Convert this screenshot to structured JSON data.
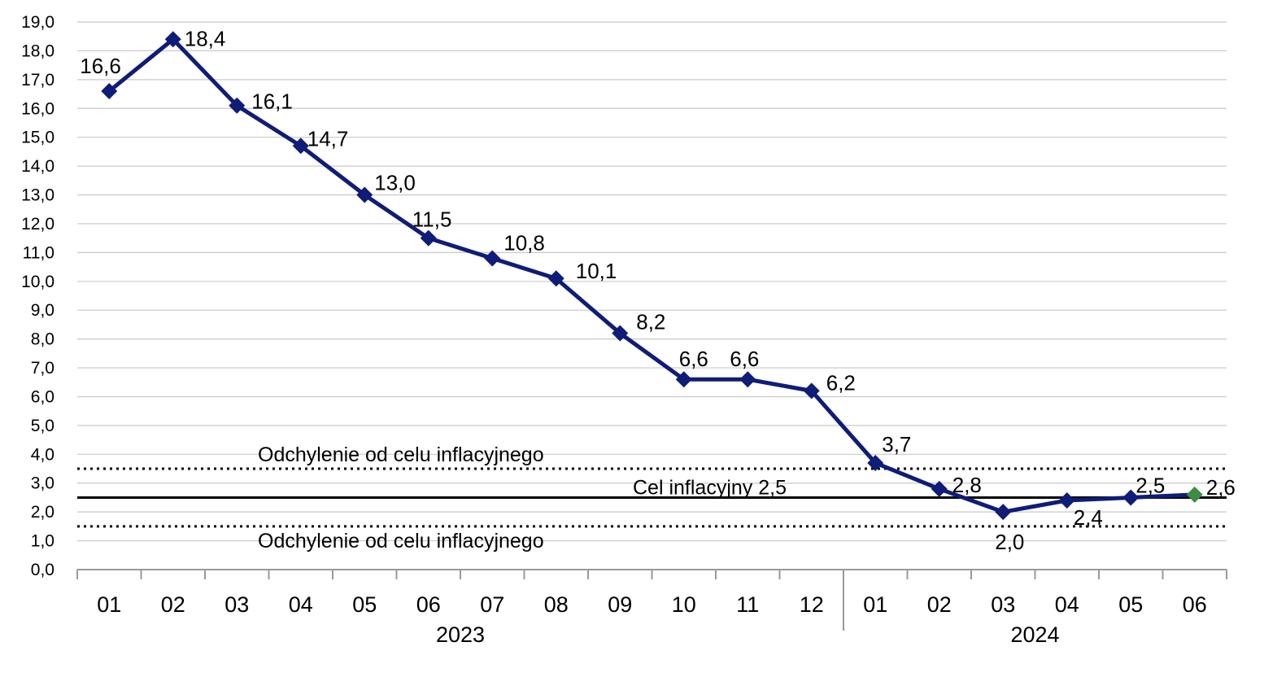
{
  "chart_data": {
    "type": "line",
    "categories": [
      "01",
      "02",
      "03",
      "04",
      "05",
      "06",
      "07",
      "08",
      "09",
      "10",
      "11",
      "12",
      "01",
      "02",
      "03",
      "04",
      "05",
      "06"
    ],
    "year_groups": [
      {
        "label": "2023",
        "count": 12
      },
      {
        "label": "2024",
        "count": 6
      }
    ],
    "series": [
      {
        "values": [
          16.6,
          18.4,
          16.1,
          14.7,
          13.0,
          11.5,
          10.8,
          10.1,
          8.2,
          6.6,
          6.6,
          6.2,
          3.7,
          2.8,
          2.0,
          2.4,
          2.5,
          2.6
        ],
        "labels": [
          "16,6",
          "18,4",
          "16,1",
          "14,7",
          "13,0",
          "11,5",
          "10,8",
          "10,1",
          "8,2",
          "6,6",
          "6,6",
          "6,2",
          "3,7",
          "2,8",
          "2,0",
          "2,4",
          "2,5",
          "2,6"
        ],
        "color": "#0f1c78",
        "last_point_color": "#3f8a46"
      }
    ],
    "reference_lines": [
      {
        "value": 3.5,
        "style": "dotted",
        "label": "Odchylenie od celu inflacyjnego"
      },
      {
        "value": 2.5,
        "style": "solid",
        "label": "Cel inflacyjny 2,5"
      },
      {
        "value": 1.5,
        "style": "dotted",
        "label": "Odchylenie od celu inflacyjnego"
      }
    ],
    "y_ticks": [
      "0,0",
      "1,0",
      "2,0",
      "3,0",
      "4,0",
      "5,0",
      "6,0",
      "7,0",
      "8,0",
      "9,0",
      "10,0",
      "11,0",
      "12,0",
      "13,0",
      "14,0",
      "15,0",
      "16,0",
      "17,0",
      "18,0",
      "19,0"
    ],
    "ylim": [
      0,
      19
    ],
    "grid": true,
    "legend": "none"
  }
}
